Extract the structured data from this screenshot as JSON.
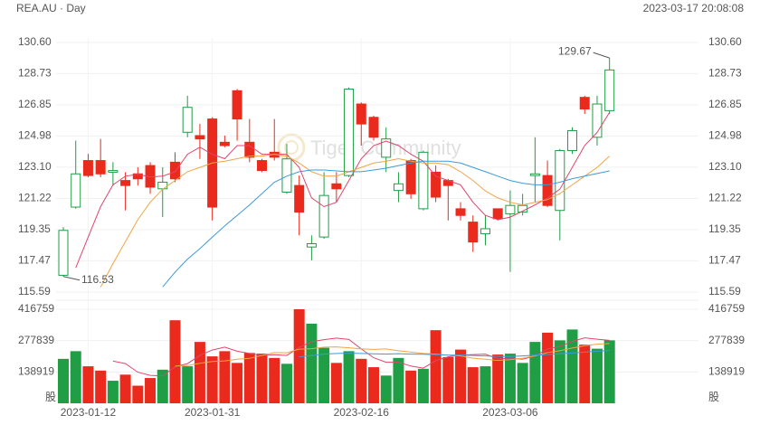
{
  "chart_data": {
    "type": "candlestick",
    "title": "REA.AU · Day",
    "subtitle": "2023-03-17 20:08:08",
    "watermark": "Tiger Community",
    "up_color": "#1f9e45",
    "down_color": "#ea2a1c",
    "categories": [
      null,
      null,
      "2023-01-12",
      null,
      null,
      null,
      null,
      null,
      null,
      null,
      null,
      null,
      "2023-01-31",
      null,
      null,
      null,
      null,
      null,
      null,
      null,
      null,
      null,
      null,
      null,
      "2023-02-16",
      null,
      null,
      null,
      null,
      null,
      null,
      null,
      null,
      null,
      null,
      null,
      "2023-03-06",
      null,
      null,
      null,
      null,
      null,
      null,
      null,
      null
    ],
    "open": [
      116.6,
      120.7,
      123.5,
      123.5,
      122.8,
      122.3,
      122.7,
      123.2,
      121.8,
      123.4,
      125.2,
      125.0,
      126.0,
      124.6,
      127.7,
      124.6,
      123.5,
      124.0,
      121.6,
      122.0,
      118.3,
      118.9,
      122.1,
      122.6,
      126.9,
      126.1,
      123.7,
      121.7,
      123.5,
      120.6,
      122.8,
      122.3,
      120.6,
      119.8,
      119.1,
      120.6,
      120.3,
      120.4,
      122.6,
      122.6,
      120.5,
      124.1,
      127.3,
      124.9,
      126.5
    ],
    "high": [
      119.5,
      124.7,
      123.9,
      124.8,
      123.4,
      122.8,
      123.1,
      123.4,
      123.1,
      124.0,
      127.4,
      125.7,
      126.1,
      125.0,
      127.8,
      126.0,
      123.6,
      126.0,
      124.5,
      122.6,
      119.0,
      122.8,
      122.8,
      127.9,
      127.0,
      126.2,
      125.5,
      122.8,
      123.6,
      124.1,
      123.2,
      122.4,
      121.0,
      120.2,
      120.2,
      120.6,
      121.7,
      121.5,
      124.9,
      123.5,
      124.2,
      125.5,
      127.4,
      127.4,
      129.67
    ],
    "low": [
      116.53,
      120.6,
      122.5,
      122.5,
      122.0,
      120.5,
      122.0,
      121.5,
      120.1,
      122.2,
      124.9,
      123.6,
      119.9,
      124.3,
      124.7,
      123.4,
      122.8,
      123.5,
      121.5,
      119.0,
      117.5,
      118.8,
      121.0,
      122.5,
      124.4,
      124.7,
      122.8,
      121.0,
      121.2,
      120.5,
      121.0,
      119.9,
      119.9,
      118.0,
      118.4,
      119.9,
      116.8,
      120.2,
      121.0,
      120.7,
      118.7,
      123.9,
      126.3,
      124.4,
      126.3
    ],
    "close": [
      119.3,
      122.7,
      122.6,
      122.7,
      122.9,
      122.0,
      122.4,
      121.9,
      122.2,
      122.4,
      126.7,
      124.8,
      120.7,
      124.4,
      126.0,
      123.7,
      122.9,
      123.7,
      123.6,
      120.4,
      118.5,
      121.4,
      121.8,
      127.8,
      125.7,
      124.9,
      124.8,
      122.1,
      121.5,
      124.0,
      121.3,
      122.0,
      120.2,
      118.6,
      119.4,
      120.0,
      120.8,
      120.8,
      122.7,
      120.8,
      124.1,
      125.3,
      126.6,
      126.9,
      128.95
    ],
    "ylim": [
      115.59,
      130.6
    ],
    "yticks": [
      {
        "value": 130.6,
        "label": "130.60"
      },
      {
        "value": 128.73,
        "label": "128.73"
      },
      {
        "value": 126.85,
        "label": "126.85"
      },
      {
        "value": 124.98,
        "label": "124.98"
      },
      {
        "value": 123.1,
        "label": "123.10"
      },
      {
        "value": 121.22,
        "label": "121.22"
      },
      {
        "value": 119.35,
        "label": "119.35"
      },
      {
        "value": 117.47,
        "label": "117.47"
      },
      {
        "value": 115.59,
        "label": "115.59"
      }
    ],
    "series": [
      {
        "color": "#e0456e",
        "values": [
          null,
          117.05,
          118.89,
          120.73,
          122.04,
          122.56,
          122.67,
          122.51,
          122.56,
          122.83,
          123.88,
          124.3,
          123.88,
          123.61,
          124.4,
          124.4,
          123.88,
          123.88,
          123.88,
          123.09,
          121.25,
          120.73,
          120.99,
          122.3,
          123.61,
          124.4,
          124.67,
          124.4,
          123.88,
          123.46,
          122.56,
          122.3,
          122.04,
          120.99,
          120.2,
          119.94,
          120.1,
          120.46,
          120.83,
          121.25,
          121.78,
          123.09,
          124.4,
          125.19,
          126.4
        ]
      },
      {
        "color": "#f2a444",
        "values": [
          null,
          null,
          null,
          115.89,
          117.31,
          118.62,
          119.94,
          120.99,
          121.78,
          122.3,
          122.83,
          123.09,
          123.35,
          123.46,
          123.61,
          123.77,
          123.77,
          123.88,
          123.77,
          123.35,
          122.83,
          122.56,
          122.56,
          122.83,
          123.09,
          123.35,
          123.46,
          123.61,
          123.46,
          123.35,
          123.35,
          123.25,
          122.83,
          122.3,
          121.67,
          121.25,
          120.99,
          120.83,
          120.99,
          121.15,
          121.51,
          122.04,
          122.56,
          123.09,
          123.77
        ]
      },
      {
        "color": "#3d9bd8",
        "values": [
          null,
          null,
          null,
          null,
          null,
          null,
          null,
          null,
          115.9,
          116.79,
          117.57,
          118.2,
          118.89,
          119.57,
          120.2,
          120.83,
          121.51,
          122.2,
          122.56,
          122.83,
          122.93,
          122.93,
          122.88,
          122.83,
          122.83,
          122.93,
          123.04,
          123.2,
          123.35,
          123.46,
          123.46,
          123.46,
          123.35,
          123.09,
          122.83,
          122.56,
          122.3,
          122.14,
          122.04,
          122.04,
          122.2,
          122.41,
          122.56,
          122.72,
          122.88
        ]
      }
    ],
    "volume": {
      "unit": "股",
      "values": [
        197000,
        231000,
        164000,
        145000,
        100000,
        127000,
        78000,
        112000,
        149000,
        368000,
        164000,
        272000,
        208000,
        231000,
        179000,
        223000,
        220000,
        201000,
        175000,
        416759,
        353000,
        246000,
        179000,
        231000,
        197000,
        160000,
        123000,
        201000,
        145000,
        153000,
        324000,
        205000,
        238000,
        160000,
        164000,
        216000,
        220000,
        179000,
        272000,
        313000,
        279000,
        327000,
        260000,
        242000,
        279000
      ],
      "ylim": [
        0,
        416759
      ],
      "yticks": [
        138919,
        277839,
        416759
      ],
      "series": [
        {
          "color": "#e0456e",
          "values": [
            null,
            null,
            null,
            null,
            187000,
            176000,
            138000,
            124000,
            121000,
            162000,
            176000,
            212000,
            236000,
            249000,
            231000,
            221000,
            212000,
            215000,
            212000,
            248000,
            273000,
            282000,
            289000,
            283000,
            241000,
            202000,
            182000,
            182000,
            165000,
            156000,
            189000,
            206000,
            213000,
            216000,
            218000,
            197000,
            200000,
            195000,
            210000,
            240000,
            253000,
            274000,
            290000,
            284000,
            279000
          ]
        },
        {
          "color": "#f2a444",
          "values": [
            null,
            null,
            null,
            null,
            null,
            null,
            null,
            null,
            null,
            165000,
            167000,
            177000,
            185000,
            188000,
            195000,
            199000,
            212000,
            225000,
            224000,
            240000,
            242000,
            249000,
            250000,
            246000,
            241000,
            239000,
            241000,
            233000,
            227000,
            221000,
            218000,
            213000,
            210000,
            200000,
            195000,
            190000,
            193000,
            200000,
            210000,
            225000,
            233000,
            245000,
            255000,
            262000,
            265000
          ]
        },
        {
          "color": "#3d9bd8",
          "values": [
            null,
            null,
            null,
            null,
            null,
            null,
            null,
            null,
            null,
            null,
            null,
            null,
            null,
            null,
            null,
            null,
            null,
            null,
            null,
            206000,
            212000,
            218000,
            221000,
            222000,
            221000,
            219000,
            218000,
            220000,
            218000,
            217000,
            215000,
            213000,
            214000,
            212000,
            210000,
            208000,
            207000,
            210000,
            213000,
            216000,
            220000,
            223000,
            227000,
            231000,
            234000
          ]
        }
      ]
    }
  }
}
